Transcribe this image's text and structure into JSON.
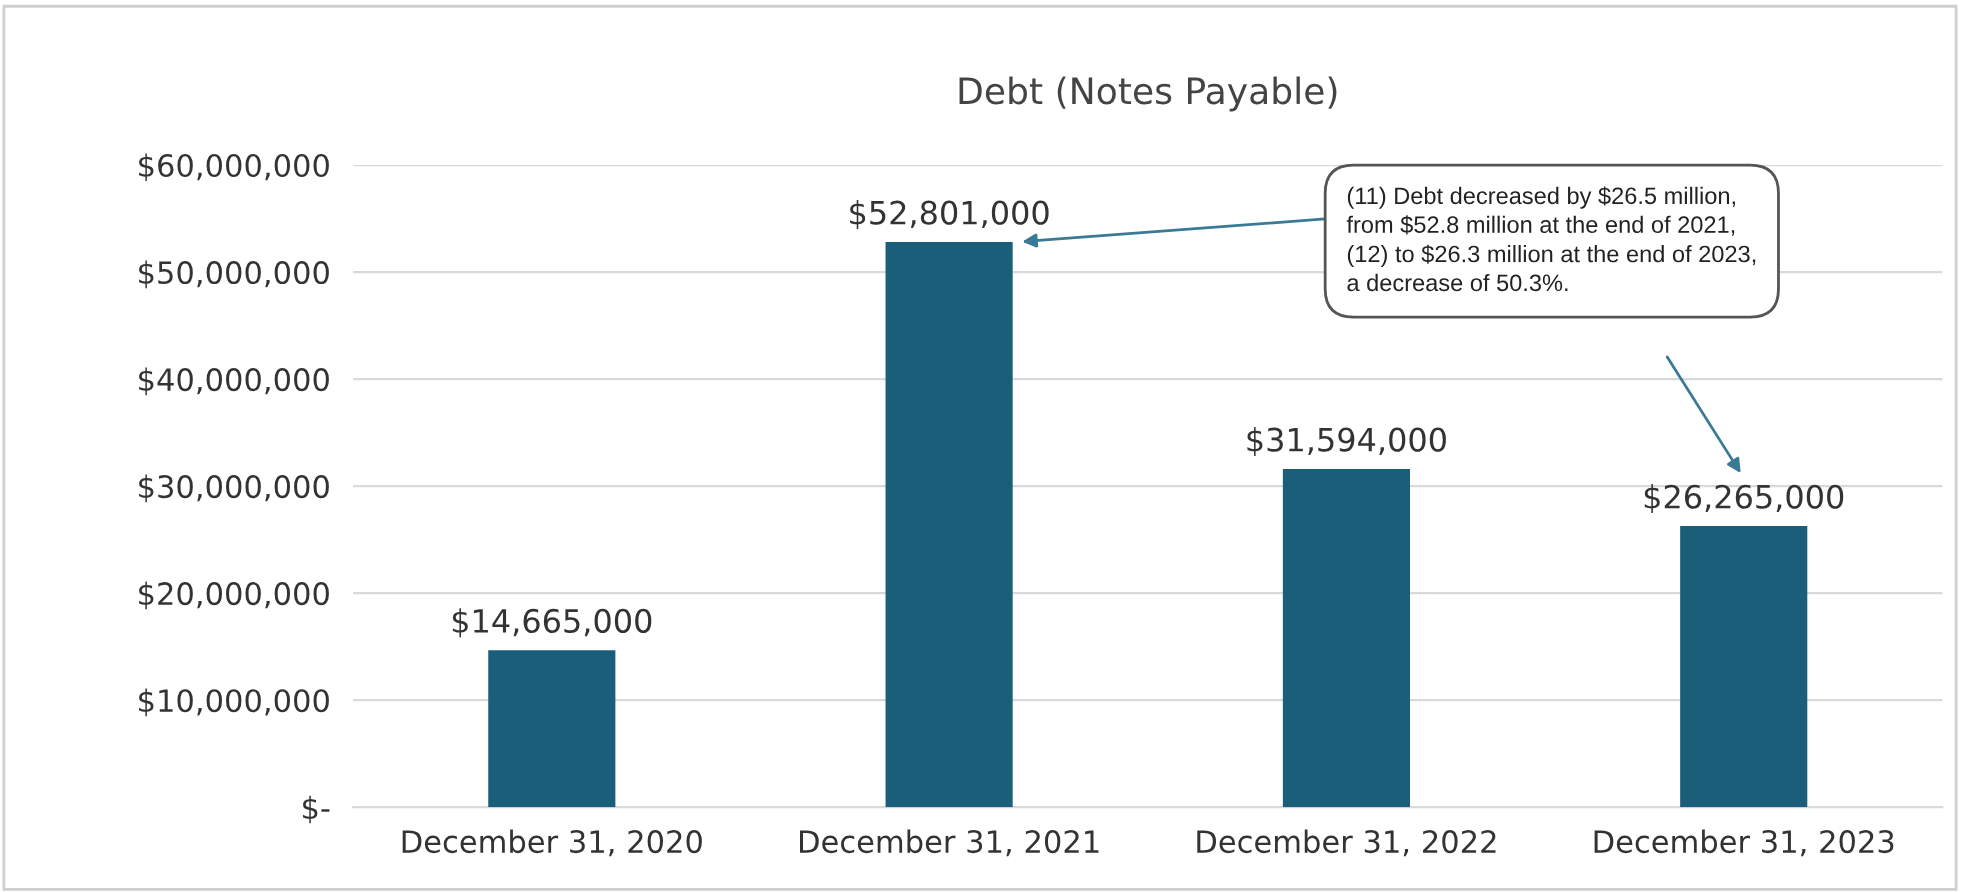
{
  "chart_data": {
    "type": "bar",
    "title": "Debt (Notes Payable)",
    "categories": [
      "December 31, 2020",
      "December 31, 2021",
      "December 31, 2022",
      "December 31, 2023"
    ],
    "values": [
      14665000,
      52801000,
      31594000,
      26265000
    ],
    "value_labels": [
      "$14,665,000",
      "$52,801,000",
      "$31,594,000",
      "$26,265,000"
    ],
    "color": "#1b5e7a",
    "ylim": [
      0,
      60000000
    ],
    "yticks": [
      {
        "value": 0,
        "label": "$-"
      },
      {
        "value": 10000000,
        "label": "$10,000,000"
      },
      {
        "value": 20000000,
        "label": "$20,000,000"
      },
      {
        "value": 30000000,
        "label": "$30,000,000"
      },
      {
        "value": 40000000,
        "label": "$40,000,000"
      },
      {
        "value": 50000000,
        "label": "$50,000,000"
      },
      {
        "value": 60000000,
        "label": "$60,000,000"
      }
    ],
    "grid": "y",
    "annotations": [
      "(11) Debt decreased by $26.5 million,\nfrom $52.8 million at the end of 2021,\n(12) to $26.3 million at the end of 2023,\na decrease of 50.3%."
    ]
  }
}
